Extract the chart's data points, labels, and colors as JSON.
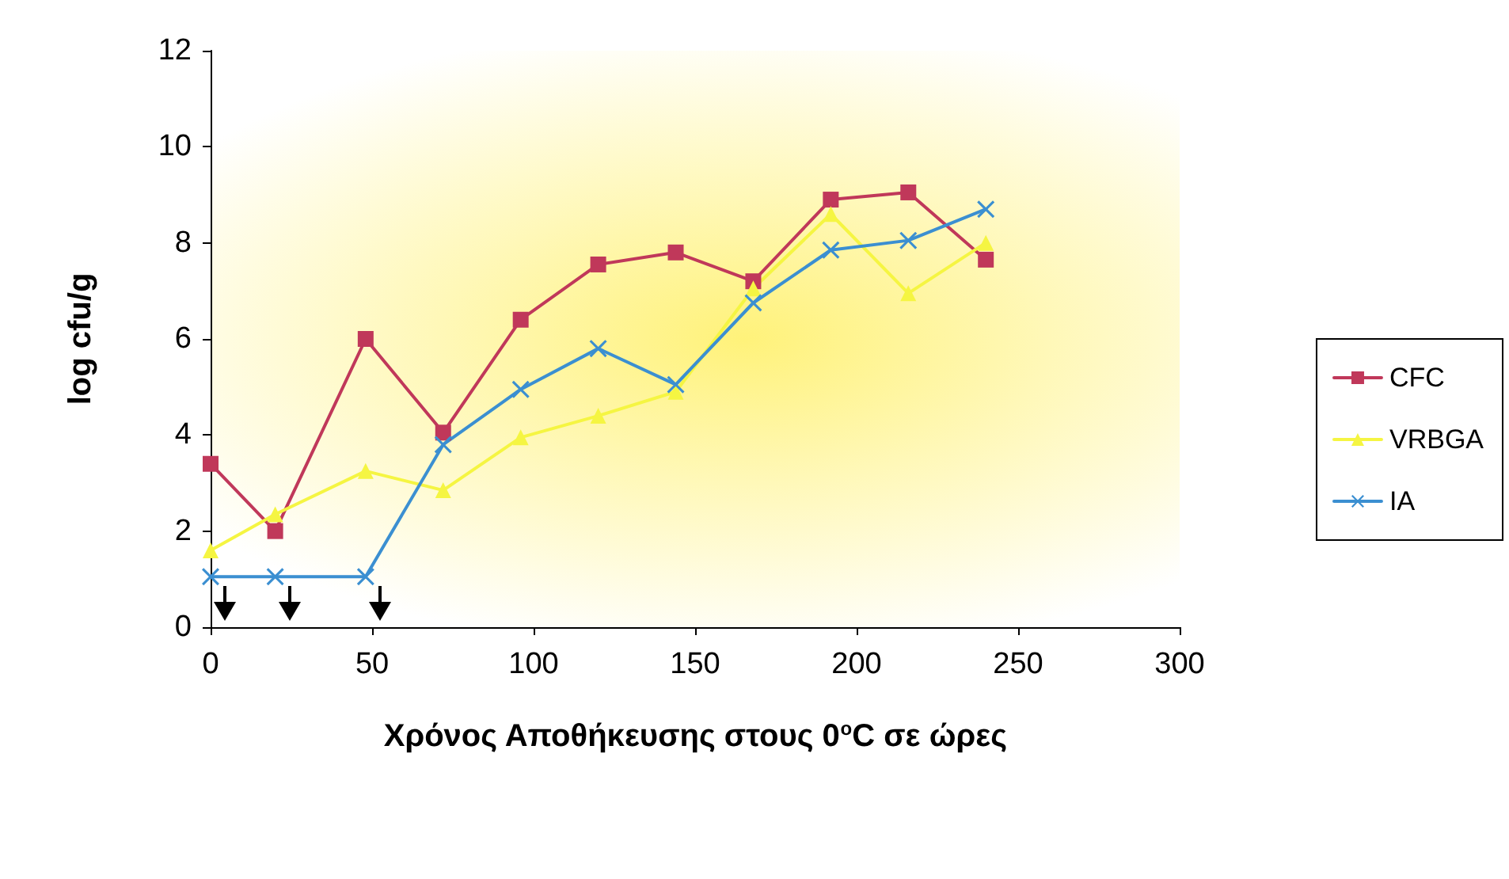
{
  "chart_data": {
    "type": "line",
    "xlabel": "Χρόνος Αποθήκευσης στους 0$^{o}$C σε ώρες",
    "ylabel": "log cfu/g",
    "x": [
      0,
      20,
      48,
      72,
      96,
      120,
      144,
      168,
      192,
      216,
      240
    ],
    "series": [
      {
        "name": "CFC",
        "color": "#c0385a",
        "marker": "square",
        "values": [
          3.4,
          2.0,
          6.0,
          4.05,
          6.4,
          7.55,
          7.8,
          7.2,
          8.9,
          9.05,
          7.65
        ]
      },
      {
        "name": "VRBGA",
        "color": "#f5f542",
        "marker": "triangle",
        "values": [
          1.6,
          2.35,
          3.25,
          2.85,
          3.95,
          4.4,
          4.9,
          7.05,
          8.6,
          6.95,
          8.0
        ]
      },
      {
        "name": "IA",
        "color": "#3b8fd1",
        "marker": "cross",
        "values": [
          1.05,
          1.05,
          1.05,
          3.8,
          4.95,
          5.8,
          5.05,
          6.75,
          7.85,
          8.05,
          8.7
        ]
      }
    ],
    "xlim": [
      0,
      300
    ],
    "xticks": [
      0,
      50,
      100,
      150,
      200,
      250,
      300
    ],
    "ylim": [
      0,
      12
    ],
    "yticks": [
      0,
      2,
      4,
      6,
      8,
      10,
      12
    ],
    "grid": false,
    "legend": "right",
    "line_style": "solid"
  }
}
